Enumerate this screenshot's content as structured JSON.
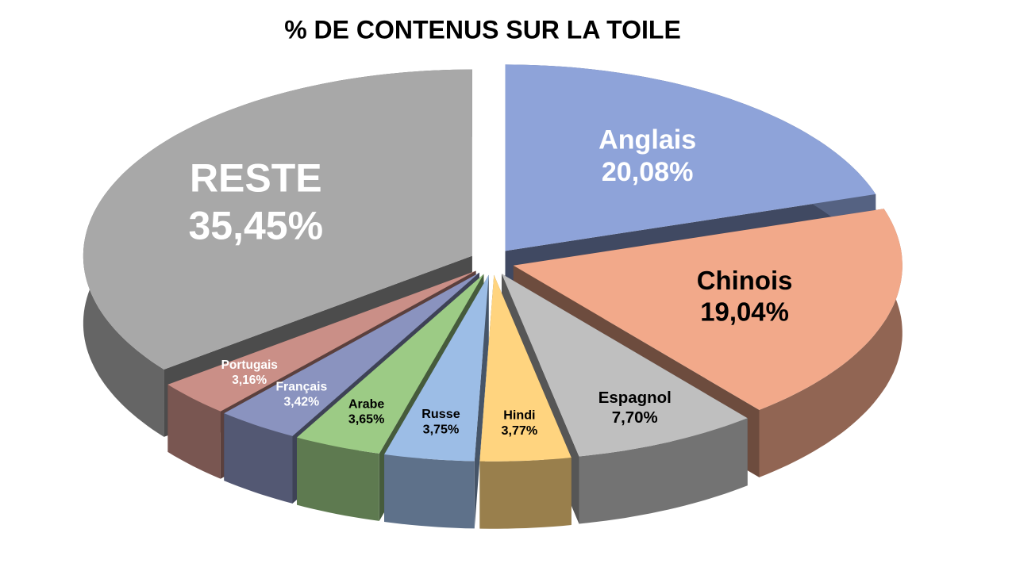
{
  "chart_data": {
    "type": "pie",
    "title": "% DE CONTENUS SUR LA TOILE",
    "categories": [
      "Anglais",
      "Chinois",
      "Espagnol",
      "Hindi",
      "Russe",
      "Arabe",
      "Français",
      "Portugais",
      "RESTE"
    ],
    "values": [
      20.08,
      19.04,
      7.7,
      3.77,
      3.75,
      3.65,
      3.42,
      3.16,
      35.45
    ],
    "value_labels": [
      "20,08%",
      "19,04%",
      "7,70%",
      "3,77%",
      "3,75%",
      "3,65%",
      "3,42%",
      "3,16%",
      "35,45%"
    ],
    "colors": [
      "#8ea3d9",
      "#f2a98a",
      "#bfbfbf",
      "#ffd47f",
      "#9cbde6",
      "#9ccb85",
      "#8a93bf",
      "#ca8f87",
      "#a8a8a8"
    ]
  }
}
